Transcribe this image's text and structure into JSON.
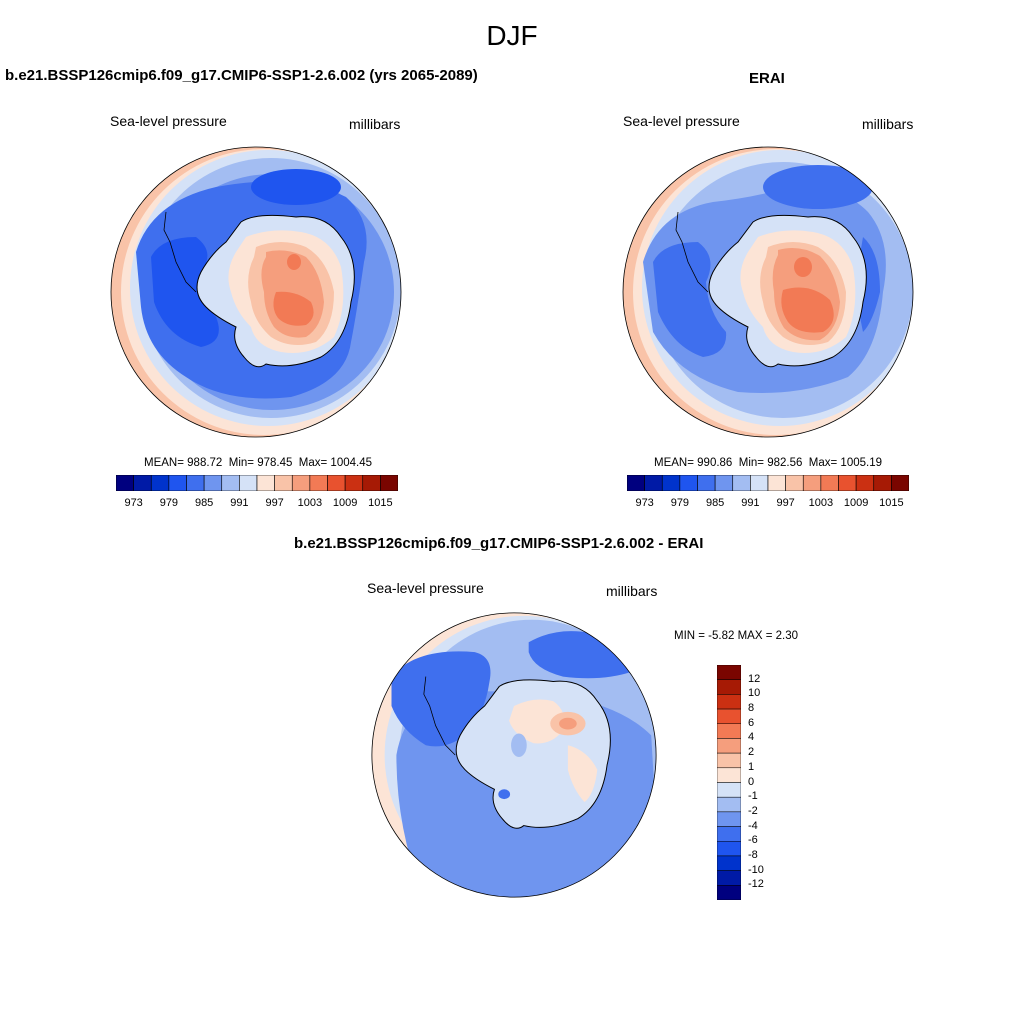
{
  "page": {
    "title": "DJF"
  },
  "panels": [
    {
      "id": "model",
      "title": "b.e21.BSSP126cmip6.f09_g17.CMIP6-SSP1-2.6.002 (yrs 2065-2089)",
      "left_label": "Sea-level pressure",
      "right_label": "millibars",
      "stats": {
        "mean_label": "MEAN=",
        "mean": "988.72",
        "min_label": "Min=",
        "min": "978.45",
        "max_label": "Max=",
        "max": "1004.45"
      }
    },
    {
      "id": "obs",
      "title": "ERAI",
      "left_label": "Sea-level pressure",
      "right_label": "millibars",
      "stats": {
        "mean_label": "MEAN=",
        "mean": "990.86",
        "min_label": "Min=",
        "min": "982.56",
        "max_label": "Max=",
        "max": "1005.19"
      }
    },
    {
      "id": "diff",
      "title": "b.e21.BSSP126cmip6.f09_g17.CMIP6-SSP1-2.6.002 - ERAI",
      "left_label": "Sea-level pressure",
      "right_label": "millibars",
      "stats_text": "MIN =  -5.82 MAX =   2.30"
    }
  ],
  "colorbars": {
    "abs": {
      "colors": [
        "#00007f",
        "#001aa6",
        "#0033cc",
        "#1f55ef",
        "#3f6fee",
        "#6f95ef",
        "#a3bdf2",
        "#d5e2f7",
        "#fce4d6",
        "#f9c3a8",
        "#f59e7d",
        "#f27a55",
        "#e8522f",
        "#cb3012",
        "#a61a05",
        "#7a0500"
      ],
      "tick_labels": [
        "973",
        "979",
        "985",
        "991",
        "997",
        "1003",
        "1009",
        "1015"
      ]
    },
    "diff": {
      "colors_top_to_bottom": [
        "#7a0500",
        "#a61a05",
        "#cb3012",
        "#e8522f",
        "#f27a55",
        "#f59e7d",
        "#f9c3a8",
        "#fce4d6",
        "#d5e2f7",
        "#a3bdf2",
        "#6f95ef",
        "#3f6fee",
        "#1f55ef",
        "#0033cc",
        "#001aa6",
        "#00007f"
      ],
      "tick_labels": [
        "12",
        "10",
        "8",
        "6",
        "4",
        "2",
        "1",
        "0",
        "-1",
        "-2",
        "-4",
        "-6",
        "-8",
        "-10",
        "-12"
      ]
    }
  },
  "map_colors": {
    "ocean_deep": "#3f6fee",
    "ocean_mid": "#6f95ef",
    "ocean_light": "#a3bdf2",
    "pale_blue": "#d5e2f7",
    "pale_orange": "#fce4d6",
    "salmon": "#f9c3a8",
    "orange": "#f59e7d",
    "red_orange": "#f27a55",
    "dark_blue": "#1f55ef"
  }
}
